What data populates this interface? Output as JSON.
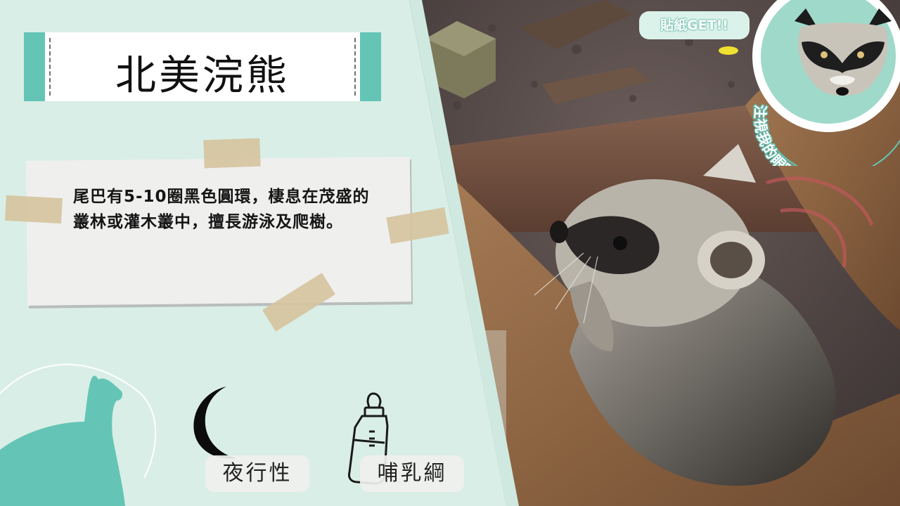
{
  "card": {
    "title": "北美浣熊",
    "description": "尾巴有5-10圈黑色圓環，棲息在茂盛的叢林或灌木叢中，擅長游泳及爬樹。",
    "tags": [
      {
        "label": "夜行性",
        "icon": "crescent-moon-icon"
      },
      {
        "label": "哺乳綱",
        "icon": "baby-bottle-icon"
      }
    ]
  },
  "sticker": {
    "pill_text": "貼紙GET!!",
    "badge_text": "注視我的眼睛!",
    "icon": "raccoon-face-icon"
  },
  "colors": {
    "panel_bg": "#d9eee6",
    "accent_teal": "#64c5b6",
    "tape": "#d6c4a0"
  }
}
